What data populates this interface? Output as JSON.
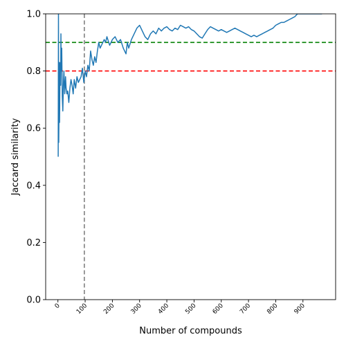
{
  "chart_data": {
    "type": "line",
    "title": "",
    "xlabel": "Number of compounds",
    "ylabel": "Jaccard similarity",
    "xlim": [
      -45,
      1020
    ],
    "ylim": [
      0.0,
      1.0
    ],
    "x_ticks": [
      0,
      100,
      200,
      300,
      400,
      500,
      600,
      700,
      800,
      900
    ],
    "x_tick_labels": [
      "0",
      "100",
      "200",
      "300",
      "400",
      "500",
      "600",
      "700",
      "800",
      "900"
    ],
    "y_ticks": [
      0.0,
      0.2,
      0.4,
      0.6,
      0.8,
      1.0
    ],
    "y_tick_labels": [
      "0.0",
      "0.2",
      "0.4",
      "0.6",
      "0.8",
      "1.0"
    ],
    "grid": false,
    "colors": {
      "series": "#1f77b4",
      "ref_high": "#008000",
      "ref_low": "#ff0000",
      "vline": "#808080"
    },
    "reference_lines": [
      {
        "orientation": "horizontal",
        "value": 0.9,
        "color": "#008000",
        "style": "dashed"
      },
      {
        "orientation": "horizontal",
        "value": 0.8,
        "color": "#ff0000",
        "style": "dashed"
      },
      {
        "orientation": "vertical",
        "value": 97,
        "color": "#808080",
        "style": "dashed"
      }
    ],
    "series": [
      {
        "x": [
          1,
          2,
          3,
          4,
          5,
          6,
          7,
          8,
          9,
          10,
          11,
          12,
          14,
          16,
          18,
          20,
          22,
          25,
          28,
          30,
          33,
          36,
          40,
          44,
          48,
          52,
          56,
          60,
          65,
          70,
          75,
          80,
          85,
          90,
          95,
          100,
          105,
          110,
          115,
          120,
          125,
          130,
          135,
          140,
          145,
          150,
          155,
          160,
          165,
          170,
          175,
          180,
          190,
          200,
          210,
          220,
          230,
          240,
          250,
          255,
          260,
          270,
          280,
          290,
          300,
          310,
          320,
          330,
          340,
          350,
          360,
          370,
          380,
          390,
          400,
          410,
          420,
          430,
          440,
          450,
          460,
          470,
          480,
          490,
          500,
          510,
          520,
          530,
          540,
          550,
          560,
          570,
          580,
          590,
          600,
          610,
          620,
          630,
          640,
          650,
          660,
          670,
          680,
          690,
          700,
          710,
          720,
          730,
          740,
          750,
          760,
          770,
          780,
          790,
          800,
          810,
          820,
          830,
          840,
          850,
          860,
          870,
          880,
          890,
          900,
          910,
          920,
          930,
          940,
          950,
          960,
          970
        ],
        "y": [
          0.5,
          1.0,
          0.55,
          0.67,
          0.83,
          0.62,
          0.73,
          0.79,
          0.83,
          0.75,
          0.93,
          0.8,
          0.88,
          0.71,
          0.66,
          0.75,
          0.8,
          0.72,
          0.78,
          0.74,
          0.72,
          0.73,
          0.69,
          0.74,
          0.77,
          0.75,
          0.72,
          0.77,
          0.74,
          0.78,
          0.76,
          0.77,
          0.78,
          0.81,
          0.76,
          0.8,
          0.78,
          0.82,
          0.8,
          0.87,
          0.84,
          0.82,
          0.85,
          0.83,
          0.87,
          0.9,
          0.88,
          0.89,
          0.9,
          0.91,
          0.9,
          0.92,
          0.89,
          0.91,
          0.92,
          0.9,
          0.91,
          0.88,
          0.86,
          0.9,
          0.88,
          0.91,
          0.93,
          0.95,
          0.96,
          0.94,
          0.92,
          0.91,
          0.93,
          0.94,
          0.93,
          0.95,
          0.94,
          0.95,
          0.955,
          0.945,
          0.94,
          0.95,
          0.945,
          0.96,
          0.955,
          0.95,
          0.955,
          0.945,
          0.94,
          0.93,
          0.92,
          0.915,
          0.93,
          0.945,
          0.955,
          0.95,
          0.945,
          0.94,
          0.945,
          0.94,
          0.935,
          0.94,
          0.945,
          0.95,
          0.945,
          0.94,
          0.935,
          0.93,
          0.925,
          0.92,
          0.925,
          0.92,
          0.925,
          0.93,
          0.935,
          0.94,
          0.945,
          0.95,
          0.96,
          0.965,
          0.97,
          0.97,
          0.975,
          0.98,
          0.985,
          0.99,
          1.0,
          1.0,
          1.0,
          1.0,
          1.0,
          1.0,
          1.0,
          1.0,
          1.0,
          1.0
        ]
      }
    ]
  }
}
